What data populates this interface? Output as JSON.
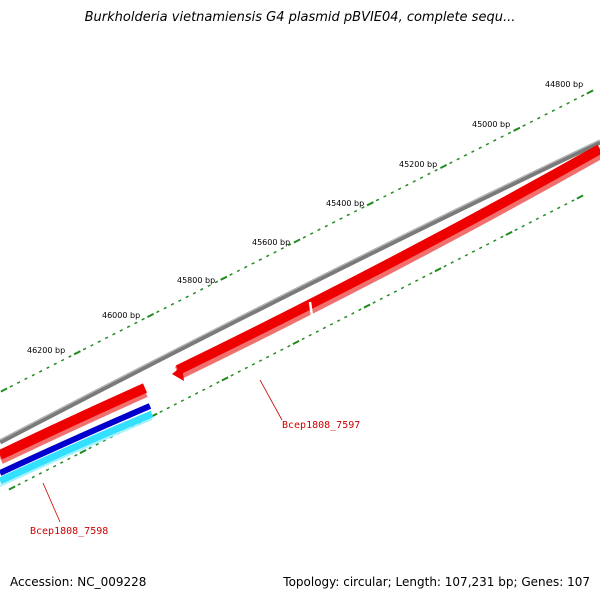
{
  "title": "Burkholderia vietnamiensis G4 plasmid pBVIE04, complete sequ...",
  "footer": {
    "accession": "Accession: NC_009228",
    "summary": "Topology: circular; Length: 107,231 bp; Genes: 107"
  },
  "colors": {
    "backbone": "#808080",
    "gene_forward": "#ee0000",
    "gene_reverse": "#ee0000",
    "track_blue": "#0000cc",
    "track_cyan": "#33e0ff",
    "ticks": "#228b22",
    "label": "#cc0000"
  },
  "scale": {
    "tick_labels": [
      "44800 bp",
      "45000 bp",
      "45200 bp",
      "45400 bp",
      "45600 bp",
      "45800 bp",
      "46000 bp",
      "46200 bp"
    ]
  },
  "genes": [
    {
      "name": "Bcep1808_7597"
    },
    {
      "name": "Bcep1808_7598"
    }
  ]
}
